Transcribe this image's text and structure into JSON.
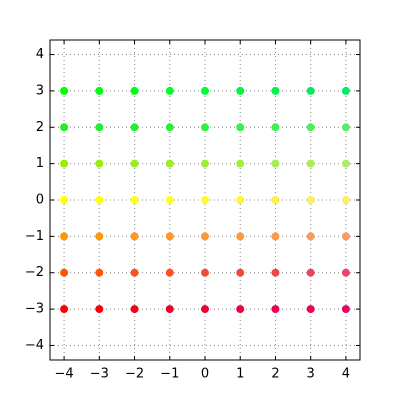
{
  "chart_data": {
    "type": "scatter",
    "x": [
      -4,
      -3,
      -2,
      -1,
      0,
      1,
      2,
      3,
      4,
      -4,
      -3,
      -2,
      -1,
      0,
      1,
      2,
      3,
      4,
      -4,
      -3,
      -2,
      -1,
      0,
      1,
      2,
      3,
      4,
      -4,
      -3,
      -2,
      -1,
      0,
      1,
      2,
      3,
      4,
      -4,
      -3,
      -2,
      -1,
      0,
      1,
      2,
      3,
      4,
      -4,
      -3,
      -2,
      -1,
      0,
      1,
      2,
      3,
      4,
      -4,
      -3,
      -2,
      -1,
      0,
      1,
      2,
      3,
      4
    ],
    "y": [
      3,
      3,
      3,
      3,
      3,
      3,
      3,
      3,
      3,
      2,
      2,
      2,
      2,
      2,
      2,
      2,
      2,
      2,
      1,
      1,
      1,
      1,
      1,
      1,
      1,
      1,
      1,
      0,
      0,
      0,
      0,
      0,
      0,
      0,
      0,
      0,
      -1,
      -1,
      -1,
      -1,
      -1,
      -1,
      -1,
      -1,
      -1,
      -2,
      -2,
      -2,
      -2,
      -2,
      -2,
      -2,
      -2,
      -2,
      -3,
      -3,
      -3,
      -3,
      -3,
      -3,
      -3,
      -3,
      -3
    ],
    "colors": [
      "#00ff00",
      "#00ff0c",
      "#00ff19",
      "#00ff26",
      "#00ff33",
      "#00f73f",
      "#00f24c",
      "#00ee59",
      "#00ee66",
      "#22ee22",
      "#22ee2c",
      "#22ee33",
      "#2aee3a",
      "#33ee44",
      "#3aee4c",
      "#44ee55",
      "#4cee5e",
      "#55ee66",
      "#99ee00",
      "#99ee0c",
      "#99ee19",
      "#99ee26",
      "#9cee33",
      "#a0ee3f",
      "#a4ee4c",
      "#a8ee59",
      "#aaee66",
      "#ffff00",
      "#ffff0c",
      "#ffff19",
      "#ffff26",
      "#fffa33",
      "#fff53f",
      "#fff04c",
      "#ffee59",
      "#ffee66",
      "#ff9900",
      "#ff990c",
      "#ff9919",
      "#ff9926",
      "#ff9933",
      "#ff993f",
      "#ff994c",
      "#ff9959",
      "#ff9966",
      "#ff5500",
      "#ff550c",
      "#ff5119",
      "#ff4e26",
      "#f54a33",
      "#f0483f",
      "#ee464c",
      "#ee4459",
      "#ee4466",
      "#ff0000",
      "#f7000c",
      "#f20019",
      "#ee0026",
      "#ee0033",
      "#ee003f",
      "#ee004c",
      "#ee0059",
      "#ee0066"
    ],
    "xlim": [
      -4.4,
      4.4
    ],
    "ylim": [
      -4.4,
      4.4
    ],
    "xticks": [
      {
        "value": -4,
        "label": "−4"
      },
      {
        "value": -3,
        "label": "−3"
      },
      {
        "value": -2,
        "label": "−2"
      },
      {
        "value": -1,
        "label": "−1"
      },
      0,
      1,
      2,
      3,
      4
    ],
    "yticks": [
      {
        "value": -4,
        "label": "−4"
      },
      {
        "value": -3,
        "label": "−3"
      },
      {
        "value": -2,
        "label": "−2"
      },
      {
        "value": -1,
        "label": "−1"
      },
      0,
      1,
      2,
      3,
      4
    ],
    "grid": true
  }
}
